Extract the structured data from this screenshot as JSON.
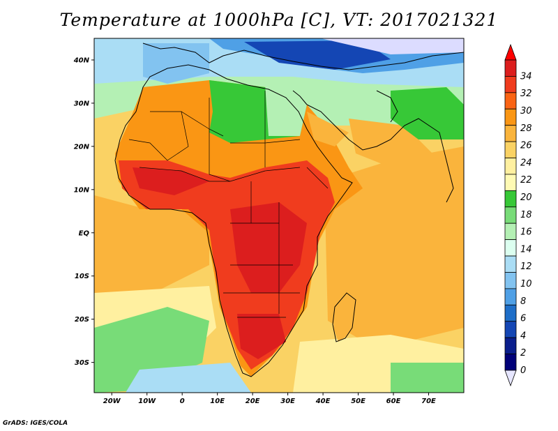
{
  "title": "Temperature at 1000hPa [C], VT: 2017021321",
  "credit": "GrADS: IGES/COLA",
  "map": {
    "lon_range": [
      -25,
      80
    ],
    "lat_range": [
      -37,
      45
    ],
    "lon_ticks": [
      {
        "lon": -20,
        "label": "20W"
      },
      {
        "lon": -10,
        "label": "10W"
      },
      {
        "lon": 0,
        "label": "0"
      },
      {
        "lon": 10,
        "label": "10E"
      },
      {
        "lon": 20,
        "label": "20E"
      },
      {
        "lon": 30,
        "label": "30E"
      },
      {
        "lon": 40,
        "label": "40E"
      },
      {
        "lon": 50,
        "label": "50E"
      },
      {
        "lon": 60,
        "label": "60E"
      },
      {
        "lon": 70,
        "label": "70E"
      }
    ],
    "lat_ticks": [
      {
        "lat": 40,
        "label": "40N"
      },
      {
        "lat": 30,
        "label": "30N"
      },
      {
        "lat": 20,
        "label": "20N"
      },
      {
        "lat": 10,
        "label": "10N"
      },
      {
        "lat": 0,
        "label": "EQ"
      },
      {
        "lat": -10,
        "label": "10S"
      },
      {
        "lat": -20,
        "label": "20S"
      },
      {
        "lat": -30,
        "label": "30S"
      }
    ]
  },
  "colorbar": {
    "labels": [
      "34",
      "32",
      "30",
      "28",
      "26",
      "24",
      "22",
      "20",
      "18",
      "16",
      "14",
      "12",
      "10",
      "8",
      "6",
      "4",
      "2",
      "0"
    ],
    "colors": [
      "#dc1e1e",
      "#f03c1e",
      "#fa6414",
      "#fa9614",
      "#fab43c",
      "#fad264",
      "#fff0a0",
      "#fffab4",
      "#37c837",
      "#78dc78",
      "#b4f0b4",
      "#dcfff0",
      "#aaddf5",
      "#82c3f0",
      "#4fa0e6",
      "#1e6ec8",
      "#1446b4",
      "#0a1e8c",
      "#000078"
    ],
    "low_color": "#e6e6ff",
    "high_color": "#ff0000"
  }
}
